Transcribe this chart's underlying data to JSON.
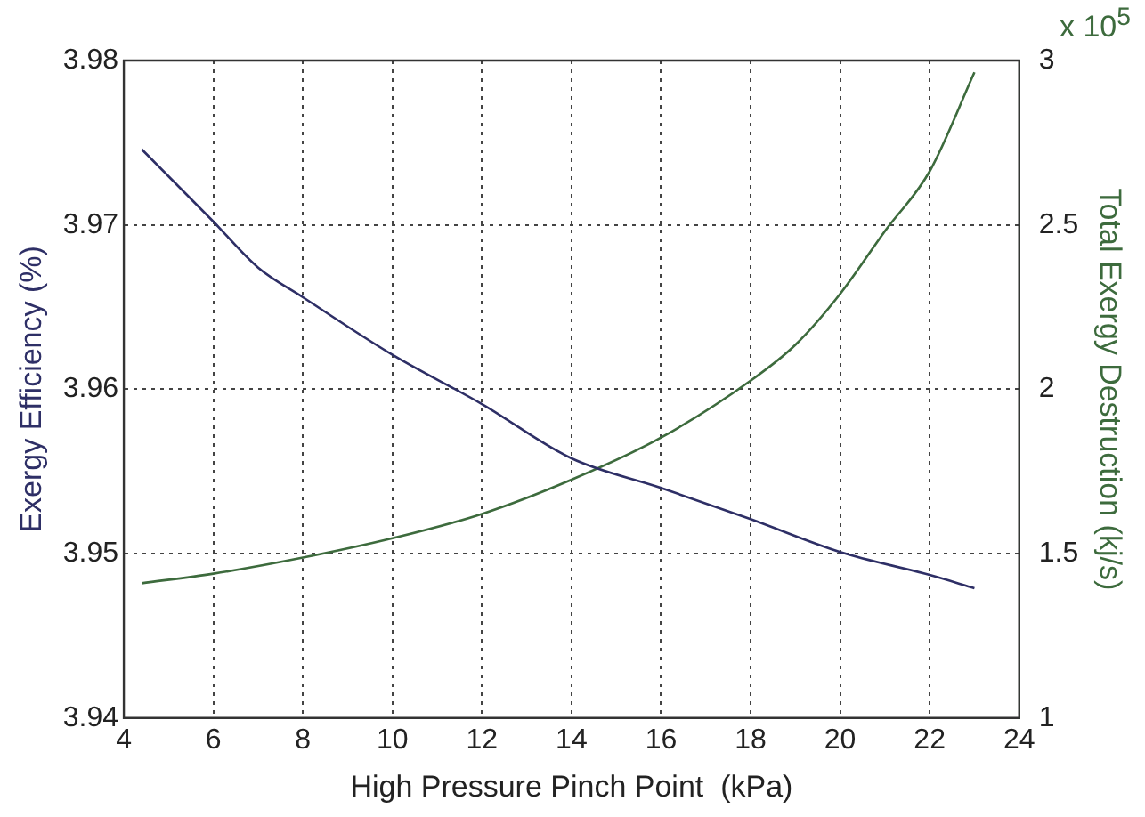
{
  "chart_data": {
    "type": "line",
    "xlabel": "High Pressure Pinch Point  (kPa)",
    "ylabel": "Exergy Efficiency (%)",
    "y2label": "Total Exergy Destruction (kj/s)",
    "annotations": [
      "x 10$^{5}$"
    ],
    "xlim": [
      4,
      24
    ],
    "xticks": [
      4,
      6,
      8,
      10,
      12,
      14,
      16,
      18,
      20,
      22,
      24
    ],
    "ylim": [
      3.94,
      3.98
    ],
    "yticks": [
      3.94,
      3.95,
      3.96,
      3.97,
      3.98
    ],
    "y2lim": [
      1,
      3
    ],
    "y2ticks": [
      1,
      1.5,
      2,
      2.5,
      3
    ],
    "grid": true,
    "legend": false,
    "marker": "none",
    "line_style": "solid",
    "series": [
      {
        "color": "#2e2f66",
        "x": [
          4.4,
          6,
          7,
          8,
          10,
          12,
          14,
          16,
          18,
          20,
          22,
          23
        ],
        "values": [
          3.9746,
          3.9702,
          3.9674,
          3.9656,
          3.9621,
          3.9591,
          3.9558,
          3.954,
          3.9521,
          3.9501,
          3.9487,
          3.9479
        ]
      },
      {
        "color": "#3d6b3d",
        "axis": "y2",
        "x": [
          4.4,
          6,
          8,
          10,
          12,
          14,
          16,
          18,
          19,
          20,
          21,
          22,
          23
        ],
        "values": [
          1.41,
          1.439,
          1.488,
          1.547,
          1.621,
          1.725,
          1.853,
          2.026,
          2.135,
          2.29,
          2.481,
          2.663,
          2.964
        ]
      }
    ]
  }
}
